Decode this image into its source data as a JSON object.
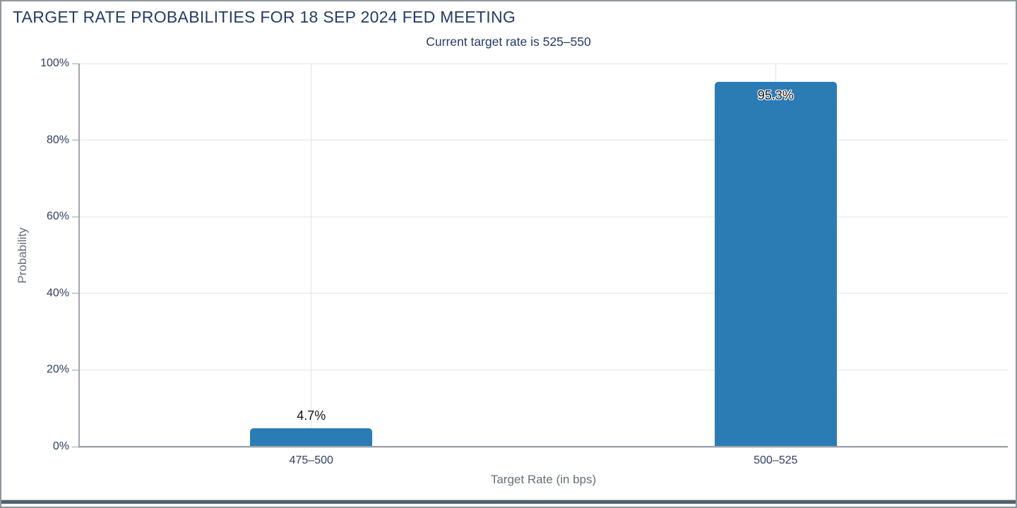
{
  "header": {
    "title": "TARGET RATE PROBABILITIES FOR 18 SEP 2024 FED MEETING",
    "subtitle": "Current target rate is 525–550"
  },
  "chart_data": {
    "type": "bar",
    "title": "TARGET RATE PROBABILITIES FOR 18 SEP 2024 FED MEETING",
    "subtitle": "Current target rate is 525–550",
    "categories": [
      "475–500",
      "500–525"
    ],
    "values": [
      4.7,
      95.3
    ],
    "value_labels": [
      "4.7%",
      "95.3%"
    ],
    "xlabel": "Target Rate (in bps)",
    "ylabel": "Probability",
    "ylim": [
      0,
      100
    ],
    "ytick_labels": [
      "0%",
      "20%",
      "40%",
      "60%",
      "80%",
      "100%"
    ],
    "ytick_values": [
      0,
      20,
      40,
      60,
      80,
      100
    ],
    "grid": true,
    "legend": "none",
    "bar_color": "#2b7cb5"
  },
  "colors": {
    "title_text": "#253b66",
    "tick_label_text": "#2e3f66",
    "axis_title_text": "#686e75",
    "axis_line": "#9ba2a9",
    "gridline": "#e4e5e8",
    "bar": "#2b7cb5",
    "window_frame": "#8d989e",
    "window_bottom_strip": "#51616b",
    "background": "#ffffff"
  }
}
